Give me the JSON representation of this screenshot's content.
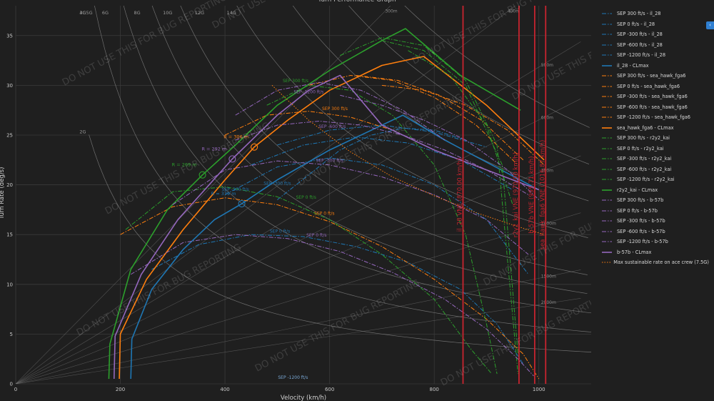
{
  "chart_data": {
    "type": "line",
    "title": "Turn Performance Graph",
    "xlabel": "Velocity (km/h)",
    "ylabel": "Turn Rate (deg/s)",
    "xlim": [
      0,
      1100
    ],
    "ylim": [
      0,
      38
    ],
    "x_ticks": [
      0,
      200,
      400,
      600,
      800,
      1000
    ],
    "y_ticks": [
      0,
      5,
      10,
      15,
      20,
      25,
      30,
      35
    ],
    "grid": true,
    "legend_position": "right",
    "watermark": "DO NOT USE THIS FOR BUG REPORTING",
    "g_lines": [
      {
        "label": "2G",
        "g": 2
      },
      {
        "label": "3G",
        "g": 3
      },
      {
        "label": "4G",
        "g": 4
      },
      {
        "label": "5G",
        "g": 5
      },
      {
        "label": "6G",
        "g": 6
      },
      {
        "label": "8G",
        "g": 8
      },
      {
        "label": "10G",
        "g": 10
      },
      {
        "label": "12G",
        "g": 12
      },
      {
        "label": "14G",
        "g": 14
      }
    ],
    "radius_lines": [
      {
        "label": "300m",
        "r": 300
      },
      {
        "label": "400m",
        "r": 400
      },
      {
        "label": "500m",
        "r": 500
      },
      {
        "label": "600m",
        "r": 600
      },
      {
        "label": "750m",
        "r": 750
      },
      {
        "label": "1000m",
        "r": 1000
      },
      {
        "label": "1500m",
        "r": 1500
      },
      {
        "label": "2000m",
        "r": 2000
      }
    ],
    "vne_lines": [
      {
        "label": "il_28 VNE (870.00 km/h)",
        "x": 855,
        "color": "#c8242f"
      },
      {
        "label": "r2y2_kai VNE (970.00 km/h)",
        "x": 962,
        "color": "#c8242f"
      },
      {
        "label": "b-57b VNE (995.71 km/h)",
        "x": 992,
        "color": "#c8242f"
      },
      {
        "label": "sea_hawk_fga6 VNE (1016.87 km/h)",
        "x": 1013,
        "color": "#c8242f"
      }
    ],
    "radius_markers": [
      {
        "label": "R = 269 m",
        "x": 357,
        "y": 21.0,
        "color": "#2ca02c"
      },
      {
        "label": "R = 292 m",
        "x": 414,
        "y": 22.6,
        "color": "#9467bd"
      },
      {
        "label": "R = 306 m",
        "x": 456,
        "y": 23.8,
        "color": "#ff7f0e"
      },
      {
        "label": "R = 379 m",
        "x": 432,
        "y": 18.1,
        "color": "#1f77b4"
      }
    ],
    "series": [
      {
        "name": "SEP 300 ft/s - il_28",
        "color": "#1f77b4",
        "dash": "dashdot",
        "x": [
          500,
          560,
          620,
          680,
          740,
          800,
          860
        ],
        "y": [
          18.5,
          21.0,
          23.5,
          25.0,
          25.7,
          25.5,
          24.5
        ]
      },
      {
        "name": "SEP 0 ft/s - il_28",
        "color": "#1f77b4",
        "dash": "dashdot",
        "x": [
          260,
          350,
          450,
          550,
          650,
          750,
          850,
          920,
          970
        ],
        "y": [
          11.5,
          14.0,
          15.0,
          14.8,
          13.8,
          12.2,
          9.5,
          6.0,
          2.0
        ]
      },
      {
        "name": "SEP -300 ft/s - il_28",
        "color": "#1f77b4",
        "dash": "dashdot",
        "x": [
          400,
          500,
          600,
          700,
          800,
          900,
          980
        ],
        "y": [
          19.0,
          21.8,
          22.7,
          22.0,
          20.0,
          16.5,
          11.0
        ]
      },
      {
        "name": "SEP -600 ft/s - il_28",
        "color": "#1f77b4",
        "dash": "dashdot",
        "x": [
          450,
          550,
          650,
          750,
          850,
          950
        ],
        "y": [
          22.0,
          24.0,
          24.8,
          24.2,
          22.5,
          19.5
        ]
      },
      {
        "name": "SEP -1200 ft/s - il_28",
        "color": "#1f77b4",
        "dash": "dashdot",
        "x": [
          500,
          600,
          700,
          800,
          900
        ],
        "y": [
          24.0,
          25.5,
          26.0,
          25.3,
          23.8
        ]
      },
      {
        "name": "il_28 - CLmax",
        "color": "#1f77b4",
        "dash": "solid",
        "x": [
          220,
          222,
          260,
          320,
          380,
          432,
          500,
          600,
          700,
          740,
          820,
          1000
        ],
        "y": [
          0.5,
          4.5,
          9.5,
          13.5,
          16.5,
          18.1,
          20.5,
          23.5,
          26.0,
          27.0,
          24.5,
          19.5
        ]
      },
      {
        "name": "SEP 300 ft/s - sea_hawk_fga6",
        "color": "#ff7f0e",
        "dash": "dashdot",
        "x": [
          400,
          480,
          560,
          640,
          720,
          800
        ],
        "y": [
          25.0,
          27.0,
          27.4,
          26.8,
          25.5,
          23.5
        ]
      },
      {
        "name": "SEP 0 ft/s - sea_hawk_fga6",
        "color": "#ff7f0e",
        "dash": "dashdot",
        "x": [
          200,
          300,
          400,
          500,
          600,
          700,
          800,
          900,
          970,
          1000
        ],
        "y": [
          15.0,
          17.8,
          18.7,
          18.0,
          16.3,
          13.8,
          10.5,
          6.5,
          3.0,
          0.5
        ]
      },
      {
        "name": "SEP -300 ft/s - sea_hawk_fga6",
        "color": "#ff7f0e",
        "dash": "dashdot",
        "x": [
          560,
          640,
          720,
          800,
          880,
          960
        ],
        "y": [
          30.0,
          31.0,
          30.5,
          28.8,
          26.0,
          22.0
        ]
      },
      {
        "name": "SEP -600 ft/s - sea_hawk_fga6",
        "color": "#ff7f0e",
        "dash": "dashdot",
        "x": [
          650,
          730,
          810,
          890,
          970
        ],
        "y": [
          31.0,
          30.5,
          29.0,
          26.5,
          22.5
        ]
      },
      {
        "name": "SEP -1200 ft/s - sea_hawk_fga6",
        "color": "#ff7f0e",
        "dash": "dashdot",
        "x": [
          700,
          780,
          860,
          940,
          1010
        ],
        "y": [
          30.0,
          29.5,
          28.0,
          25.5,
          22.0
        ]
      },
      {
        "name": "sea_hawk_fga6 - CLmax",
        "color": "#ff7f0e",
        "dash": "solid",
        "x": [
          198,
          200,
          250,
          320,
          400,
          456,
          520,
          600,
          700,
          780,
          900,
          1010
        ],
        "y": [
          0.5,
          5.0,
          10.5,
          15.5,
          20.5,
          23.8,
          26.5,
          29.5,
          32.0,
          32.9,
          28.0,
          22.5
        ]
      },
      {
        "name": "SEP 300 ft/s - r2y2_kai",
        "color": "#2ca02c",
        "dash": "dashdot",
        "x": [
          480,
          560,
          640,
          720,
          800,
          860,
          900,
          920
        ],
        "y": [
          28.0,
          30.0,
          29.5,
          27.0,
          22.0,
          15.0,
          6.0,
          1.0
        ]
      },
      {
        "name": "SEP 0 ft/s - r2y2_kai",
        "color": "#2ca02c",
        "dash": "dashdot",
        "x": [
          210,
          300,
          400,
          500,
          600,
          700,
          800,
          870,
          910
        ],
        "y": [
          15.5,
          19.3,
          19.8,
          18.8,
          16.5,
          13.0,
          8.5,
          3.5,
          1.0
        ]
      },
      {
        "name": "SEP -300 ft/s - r2y2_kai",
        "color": "#2ca02c",
        "dash": "dashdot",
        "x": [
          620,
          700,
          780,
          860,
          920,
          960
        ],
        "y": [
          33.0,
          34.8,
          34.0,
          30.5,
          24.0,
          1.0
        ]
      },
      {
        "name": "SEP -600 ft/s - r2y2_kai",
        "color": "#2ca02c",
        "dash": "dashdot",
        "x": [
          700,
          780,
          860,
          930,
          960
        ],
        "y": [
          34.5,
          33.5,
          30.0,
          22.0,
          3.0
        ]
      },
      {
        "name": "SEP -1200 ft/s - r2y2_kai",
        "color": "#2ca02c",
        "dash": "dashdot",
        "x": [
          750,
          830,
          900,
          950
        ],
        "y": [
          33.5,
          31.0,
          26.0,
          18.0
        ]
      },
      {
        "name": "r2y2_kai - CLmax",
        "color": "#2ca02c",
        "dash": "solid",
        "x": [
          178,
          180,
          220,
          290,
          357,
          420,
          500,
          600,
          700,
          745,
          850,
          965
        ],
        "y": [
          0.5,
          4.0,
          11.5,
          17.5,
          21.0,
          24.0,
          28.0,
          31.5,
          34.5,
          35.7,
          31.0,
          27.5
        ]
      },
      {
        "name": "SEP 300 ft/s - b-57b",
        "color": "#9467bd",
        "dash": "dashdot",
        "x": [
          420,
          500,
          580,
          660,
          740,
          820
        ],
        "y": [
          27.0,
          29.5,
          30.3,
          29.5,
          27.5,
          24.5
        ]
      },
      {
        "name": "SEP 0 ft/s - b-57b",
        "color": "#9467bd",
        "dash": "dashdot",
        "x": [
          220,
          320,
          420,
          520,
          620,
          720,
          820,
          900,
          960,
          990
        ],
        "y": [
          11.0,
          14.2,
          15.0,
          14.6,
          13.3,
          11.2,
          8.5,
          5.5,
          2.5,
          0.8
        ]
      },
      {
        "name": "SEP -300 ft/s - b-57b",
        "color": "#9467bd",
        "dash": "dashdot",
        "x": [
          300,
          400,
          500,
          600,
          700,
          800,
          900,
          980
        ],
        "y": [
          18.0,
          21.5,
          22.4,
          22.0,
          20.8,
          19.0,
          16.5,
          13.0
        ]
      },
      {
        "name": "SEP -600 ft/s - b-57b",
        "color": "#9467bd",
        "dash": "dashdot",
        "x": [
          420,
          500,
          580,
          660,
          740,
          820,
          900,
          980
        ],
        "y": [
          24.5,
          26.0,
          26.4,
          26.0,
          25.0,
          23.5,
          21.5,
          19.0
        ]
      },
      {
        "name": "SEP -1200 ft/s - b-57b",
        "color": "#9467bd",
        "dash": "dashdot",
        "x": [
          620,
          700,
          780,
          860,
          940,
          1000
        ],
        "y": [
          29.0,
          28.0,
          26.5,
          24.5,
          21.5,
          18.5
        ]
      },
      {
        "name": "b-57b - CLmax",
        "color": "#9467bd",
        "dash": "solid",
        "x": [
          188,
          190,
          240,
          310,
          414,
          500,
          560,
          620,
          700,
          800,
          900,
          1000
        ],
        "y": [
          0.5,
          4.8,
          11.0,
          16.5,
          22.6,
          27.0,
          29.5,
          31.0,
          26.0,
          23.5,
          21.5,
          19.5
        ]
      },
      {
        "name": "Max sustainable rate on ace crew (7.5G)",
        "color": "#ff7f0e",
        "dash": "dot",
        "x": [
          490,
          560,
          640,
          720,
          800,
          880,
          960,
          1010
        ],
        "y": [
          30.0,
          26.5,
          23.3,
          20.8,
          18.9,
          17.2,
          15.8,
          15.0
        ]
      }
    ],
    "annotations": [
      {
        "text": "SEP 300 ft/s",
        "x": 535,
        "y": 30.3,
        "color": "#2ca02c"
      },
      {
        "text": "SEP -1200 ft/s",
        "x": 560,
        "y": 29.2,
        "color": "#9467bd"
      },
      {
        "text": "SEP 300 ft/s",
        "x": 610,
        "y": 27.5,
        "color": "#ff7f0e"
      },
      {
        "text": "SEP -600 ft/s",
        "x": 605,
        "y": 25.7,
        "color": "#9467bd"
      },
      {
        "text": "SEP -300 ft/s",
        "x": 600,
        "y": 22.3,
        "color": "#9467bd"
      },
      {
        "text": "SEP -300 ft/s",
        "x": 500,
        "y": 20.0,
        "color": "#1f77b4"
      },
      {
        "text": "SEP 0 ft/s",
        "x": 555,
        "y": 18.6,
        "color": "#2ca02c"
      },
      {
        "text": "SEP 0 ft/s",
        "x": 590,
        "y": 17.0,
        "color": "#ff7f0e"
      },
      {
        "text": "SEP 0 ft/s",
        "x": 505,
        "y": 15.2,
        "color": "#1f77b4"
      },
      {
        "text": "SEP 0 ft/s",
        "x": 575,
        "y": 14.8,
        "color": "#9467bd"
      },
      {
        "text": "SEP -300 ft/s",
        "x": 420,
        "y": 19.4,
        "color": "#1f77b4"
      },
      {
        "text": "SEP -1200 ft/s",
        "x": 530,
        "y": 0.5,
        "color": "#7fb0e0"
      }
    ]
  }
}
